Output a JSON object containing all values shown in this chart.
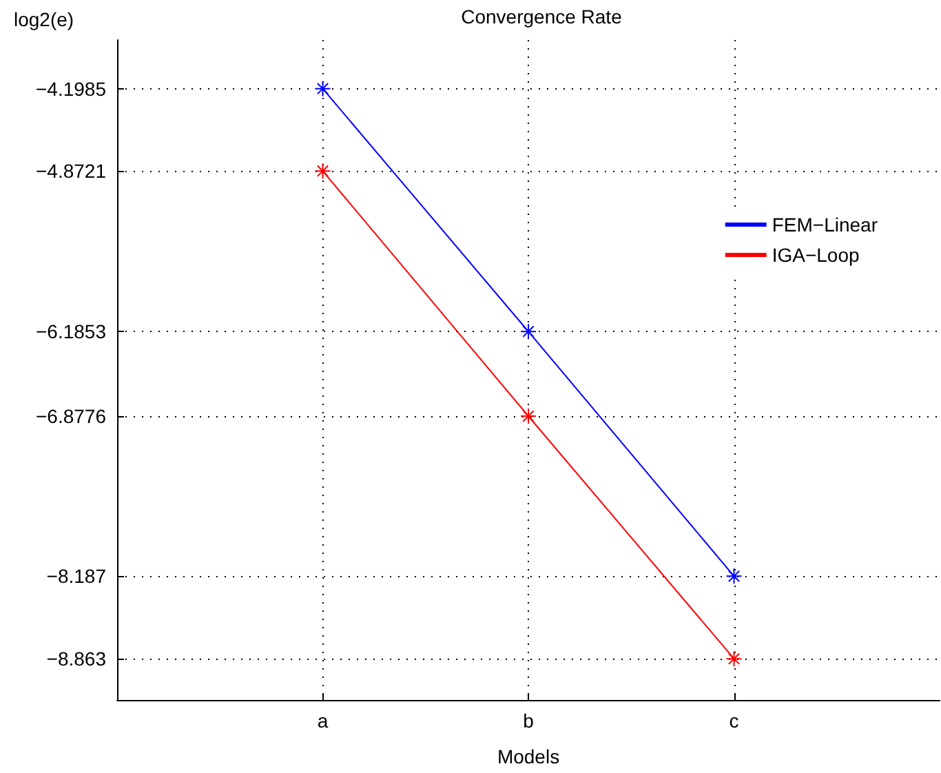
{
  "chart_data": {
    "type": "line",
    "title": "Convergence Rate",
    "xlabel": "Models",
    "ylabel": "log2(e)",
    "categories": [
      "a",
      "b",
      "c"
    ],
    "series": [
      {
        "name": "FEM−Linear",
        "color": "#0000ff",
        "values": [
          -4.1985,
          -6.1853,
          -8.187
        ]
      },
      {
        "name": "IGA−Loop",
        "color": "#ff0000",
        "values": [
          -4.8721,
          -6.8776,
          -8.863
        ]
      }
    ],
    "ylim": [
      -9.2,
      -3.8
    ],
    "yticks": [
      -8.863,
      -8.187,
      -6.8776,
      -6.1853,
      -4.8721,
      -4.1985
    ],
    "grid": true,
    "legend": "top right",
    "marker": "cross",
    "line_style": "solid"
  }
}
